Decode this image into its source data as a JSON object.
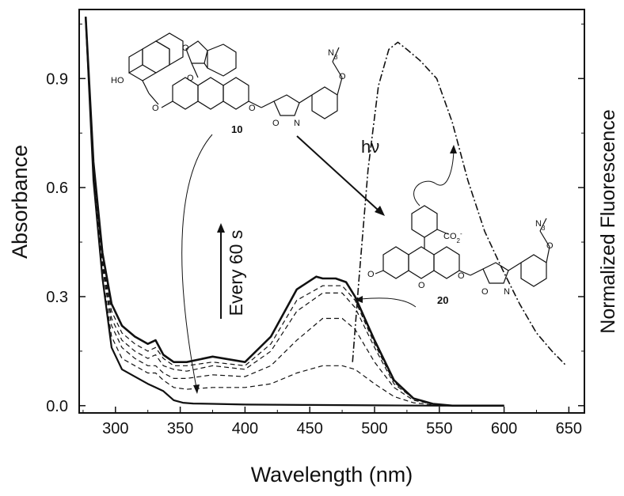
{
  "chart_data": {
    "type": "line",
    "xlabel": "Wavelength (nm)",
    "ylabel": "Absorbance",
    "y2label": "Normalized Fluorescence",
    "xlim": [
      272,
      662
    ],
    "ylim": [
      -0.02,
      1.09
    ],
    "x_ticks": [
      300,
      350,
      400,
      450,
      500,
      550,
      600,
      650
    ],
    "y_ticks": [
      0.0,
      0.3,
      0.6,
      0.9
    ],
    "y_tick_labels": [
      "0.0",
      "0.3",
      "0.6",
      "0.9"
    ],
    "grid": false,
    "series": [
      {
        "style": "solid-thin",
        "x": [
          277,
          283,
          290,
          297,
          305,
          315,
          325,
          331,
          337,
          345,
          352,
          360,
          375,
          400,
          450,
          500,
          550,
          600
        ],
        "y": [
          1.07,
          0.62,
          0.35,
          0.16,
          0.1,
          0.08,
          0.06,
          0.05,
          0.04,
          0.015,
          0.008,
          0.006,
          0.005,
          0.003,
          0.002,
          0.001,
          0.0,
          0.0
        ]
      },
      {
        "style": "dashed",
        "x": [
          277,
          283,
          290,
          297,
          305,
          315,
          325,
          331,
          337,
          345,
          355,
          375,
          400,
          420,
          440,
          460,
          475,
          485,
          500,
          515,
          530,
          545,
          560,
          600
        ],
        "y": [
          1.07,
          0.63,
          0.36,
          0.19,
          0.13,
          0.11,
          0.09,
          0.09,
          0.07,
          0.05,
          0.045,
          0.05,
          0.05,
          0.06,
          0.09,
          0.11,
          0.11,
          0.1,
          0.06,
          0.025,
          0.008,
          0.002,
          0.0,
          0.0
        ]
      },
      {
        "style": "dashed",
        "x": [
          277,
          283,
          290,
          297,
          305,
          315,
          325,
          331,
          337,
          345,
          355,
          375,
          400,
          420,
          440,
          460,
          475,
          485,
          500,
          515,
          530,
          545,
          560,
          600
        ],
        "y": [
          1.07,
          0.64,
          0.38,
          0.22,
          0.16,
          0.13,
          0.11,
          0.11,
          0.09,
          0.075,
          0.075,
          0.085,
          0.08,
          0.11,
          0.18,
          0.24,
          0.24,
          0.21,
          0.12,
          0.05,
          0.015,
          0.004,
          0.0,
          0.0
        ]
      },
      {
        "style": "dashed",
        "x": [
          277,
          283,
          290,
          297,
          305,
          315,
          325,
          331,
          337,
          345,
          355,
          375,
          400,
          420,
          440,
          460,
          475,
          485,
          500,
          515,
          530,
          545,
          560,
          600
        ],
        "y": [
          1.07,
          0.65,
          0.39,
          0.24,
          0.18,
          0.15,
          0.13,
          0.14,
          0.11,
          0.1,
          0.095,
          0.11,
          0.1,
          0.15,
          0.26,
          0.31,
          0.31,
          0.27,
          0.16,
          0.06,
          0.02,
          0.005,
          0.0,
          0.0
        ]
      },
      {
        "style": "dashed",
        "x": [
          277,
          283,
          290,
          297,
          305,
          315,
          325,
          331,
          337,
          345,
          355,
          375,
          400,
          420,
          440,
          460,
          475,
          485,
          500,
          515,
          530,
          545,
          560,
          600
        ],
        "y": [
          1.07,
          0.66,
          0.4,
          0.26,
          0.2,
          0.17,
          0.15,
          0.16,
          0.13,
          0.11,
          0.11,
          0.12,
          0.11,
          0.17,
          0.29,
          0.33,
          0.33,
          0.29,
          0.17,
          0.065,
          0.02,
          0.005,
          0.0,
          0.0
        ]
      },
      {
        "style": "solid-thick",
        "x": [
          277,
          283,
          290,
          297,
          305,
          315,
          325,
          331,
          337,
          345,
          355,
          375,
          400,
          420,
          440,
          455,
          460,
          470,
          478,
          485,
          500,
          515,
          530,
          545,
          560,
          600
        ],
        "y": [
          1.07,
          0.67,
          0.42,
          0.28,
          0.22,
          0.19,
          0.17,
          0.18,
          0.14,
          0.12,
          0.12,
          0.135,
          0.12,
          0.19,
          0.32,
          0.355,
          0.35,
          0.35,
          0.34,
          0.3,
          0.18,
          0.07,
          0.02,
          0.005,
          0.0,
          0.0
        ]
      },
      {
        "style": "dash-dot",
        "axis": "right",
        "x": [
          483,
          488,
          495,
          503,
          511,
          518,
          525,
          535,
          548,
          560,
          572,
          585,
          598,
          612,
          625,
          637,
          648
        ],
        "y": [
          0.12,
          0.35,
          0.65,
          0.88,
          0.98,
          1.0,
          0.98,
          0.95,
          0.9,
          0.78,
          0.62,
          0.48,
          0.38,
          0.28,
          0.2,
          0.15,
          0.11
        ]
      }
    ],
    "annotations": {
      "time_label": "Every 60 s",
      "light_label": "hν",
      "compound_10_label": "10",
      "compound_20_label": "20"
    }
  },
  "chem_labels": {
    "azide_10": "N3",
    "azide_20": "N3",
    "hydroxyl": "HO",
    "carbonyl_o": "O",
    "ring_o": "O",
    "ether_o_left": "O",
    "ether_o_right": "O",
    "isoxazoline_n": "N",
    "isoxazoline_o": "O",
    "carboxylate": "CO2-",
    "quinone_o": "O",
    "xanthene_o": "O",
    "ether_o_20": "O",
    "isox_20_o": "O",
    "isox_20_n": "N",
    "aryl_o_10": "O",
    "aryl_o_20": "O"
  }
}
